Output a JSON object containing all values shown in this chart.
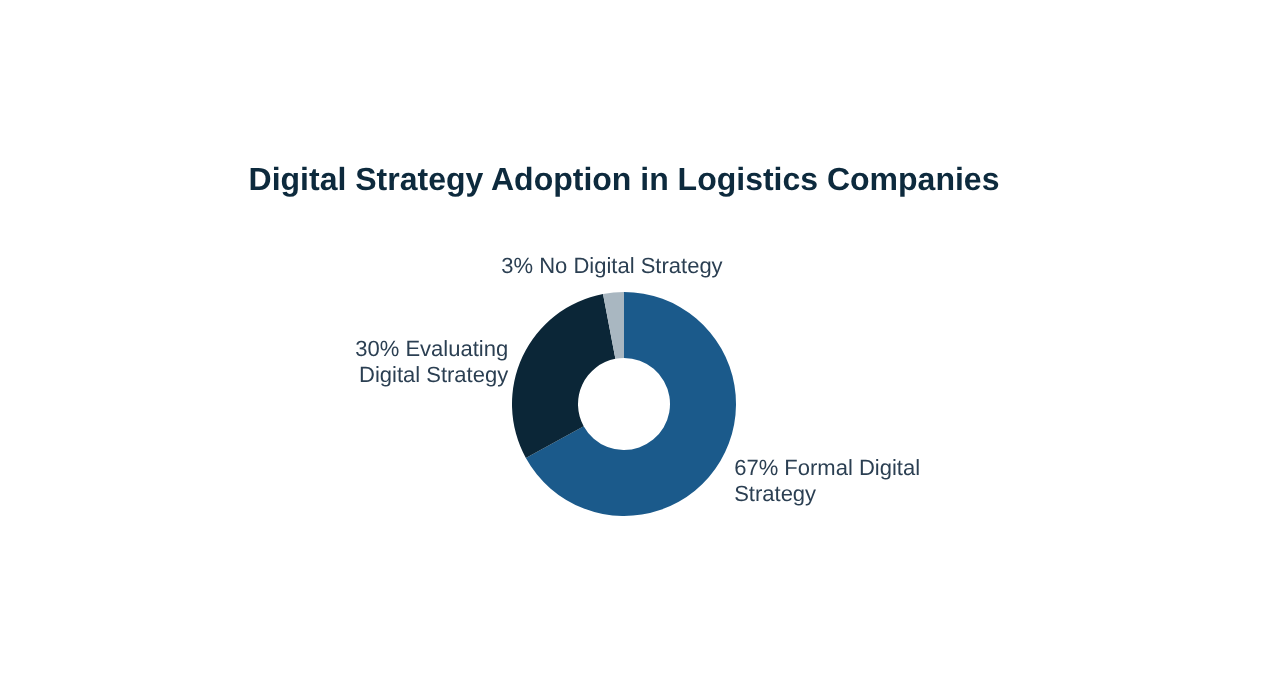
{
  "chart_data": {
    "type": "donut",
    "title": "Digital Strategy Adoption in Logistics Companies",
    "categories": [
      "Formal Digital Strategy",
      "Evaluating Digital Strategy",
      "No Digital Strategy"
    ],
    "values": [
      67,
      30,
      3
    ],
    "value_labels": [
      "67%",
      "30%",
      "3%"
    ],
    "colors": [
      "#1b5a8b",
      "#0b2637",
      "#a9b7c1"
    ],
    "legend": false
  }
}
